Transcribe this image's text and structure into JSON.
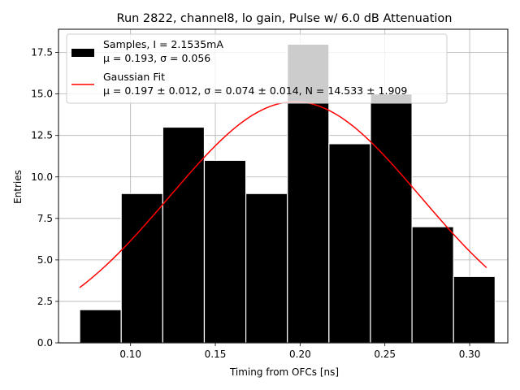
{
  "chart_data": {
    "type": "bar",
    "title": "Run 2822, channel8, lo gain, Pulse w/ 6.0 dB Attenuation",
    "xlabel": "Timing from OFCs [ns]",
    "ylabel": "Entries",
    "xlim": [
      0.0575,
      0.3225
    ],
    "ylim": [
      0,
      18.9
    ],
    "grid": true,
    "legend_position": "top-left",
    "xticks": [
      0.1,
      0.15,
      0.2,
      0.25,
      0.3
    ],
    "xtick_labels": [
      "0.10",
      "0.15",
      "0.20",
      "0.25",
      "0.30"
    ],
    "yticks": [
      0.0,
      2.5,
      5.0,
      7.5,
      10.0,
      12.5,
      15.0,
      17.5
    ],
    "ytick_labels": [
      "0.0",
      "2.5",
      "5.0",
      "7.5",
      "10.0",
      "12.5",
      "15.0",
      "17.5"
    ],
    "bins": {
      "edges": [
        0.07,
        0.0945,
        0.119,
        0.1435,
        0.168,
        0.1925,
        0.217,
        0.2415,
        0.266,
        0.2905,
        0.315
      ],
      "counts": [
        2,
        9,
        13,
        11,
        9,
        18,
        12,
        15,
        7,
        4
      ],
      "color": "#000000",
      "edge_color": "#ffffff"
    },
    "fit": {
      "mu": 0.197,
      "sigma": 0.074,
      "N": 14.533,
      "x_range": [
        0.07,
        0.31
      ],
      "color": "#ff0000"
    },
    "legend": [
      {
        "line1": "Samples, I = 2.1535mA",
        "line2": "μ = 0.193, σ = 0.056"
      },
      {
        "line1": "Gaussian Fit",
        "line2": "μ = 0.197 ± 0.012, σ = 0.074 ± 0.014, N = 14.533 ± 1.909"
      }
    ]
  }
}
